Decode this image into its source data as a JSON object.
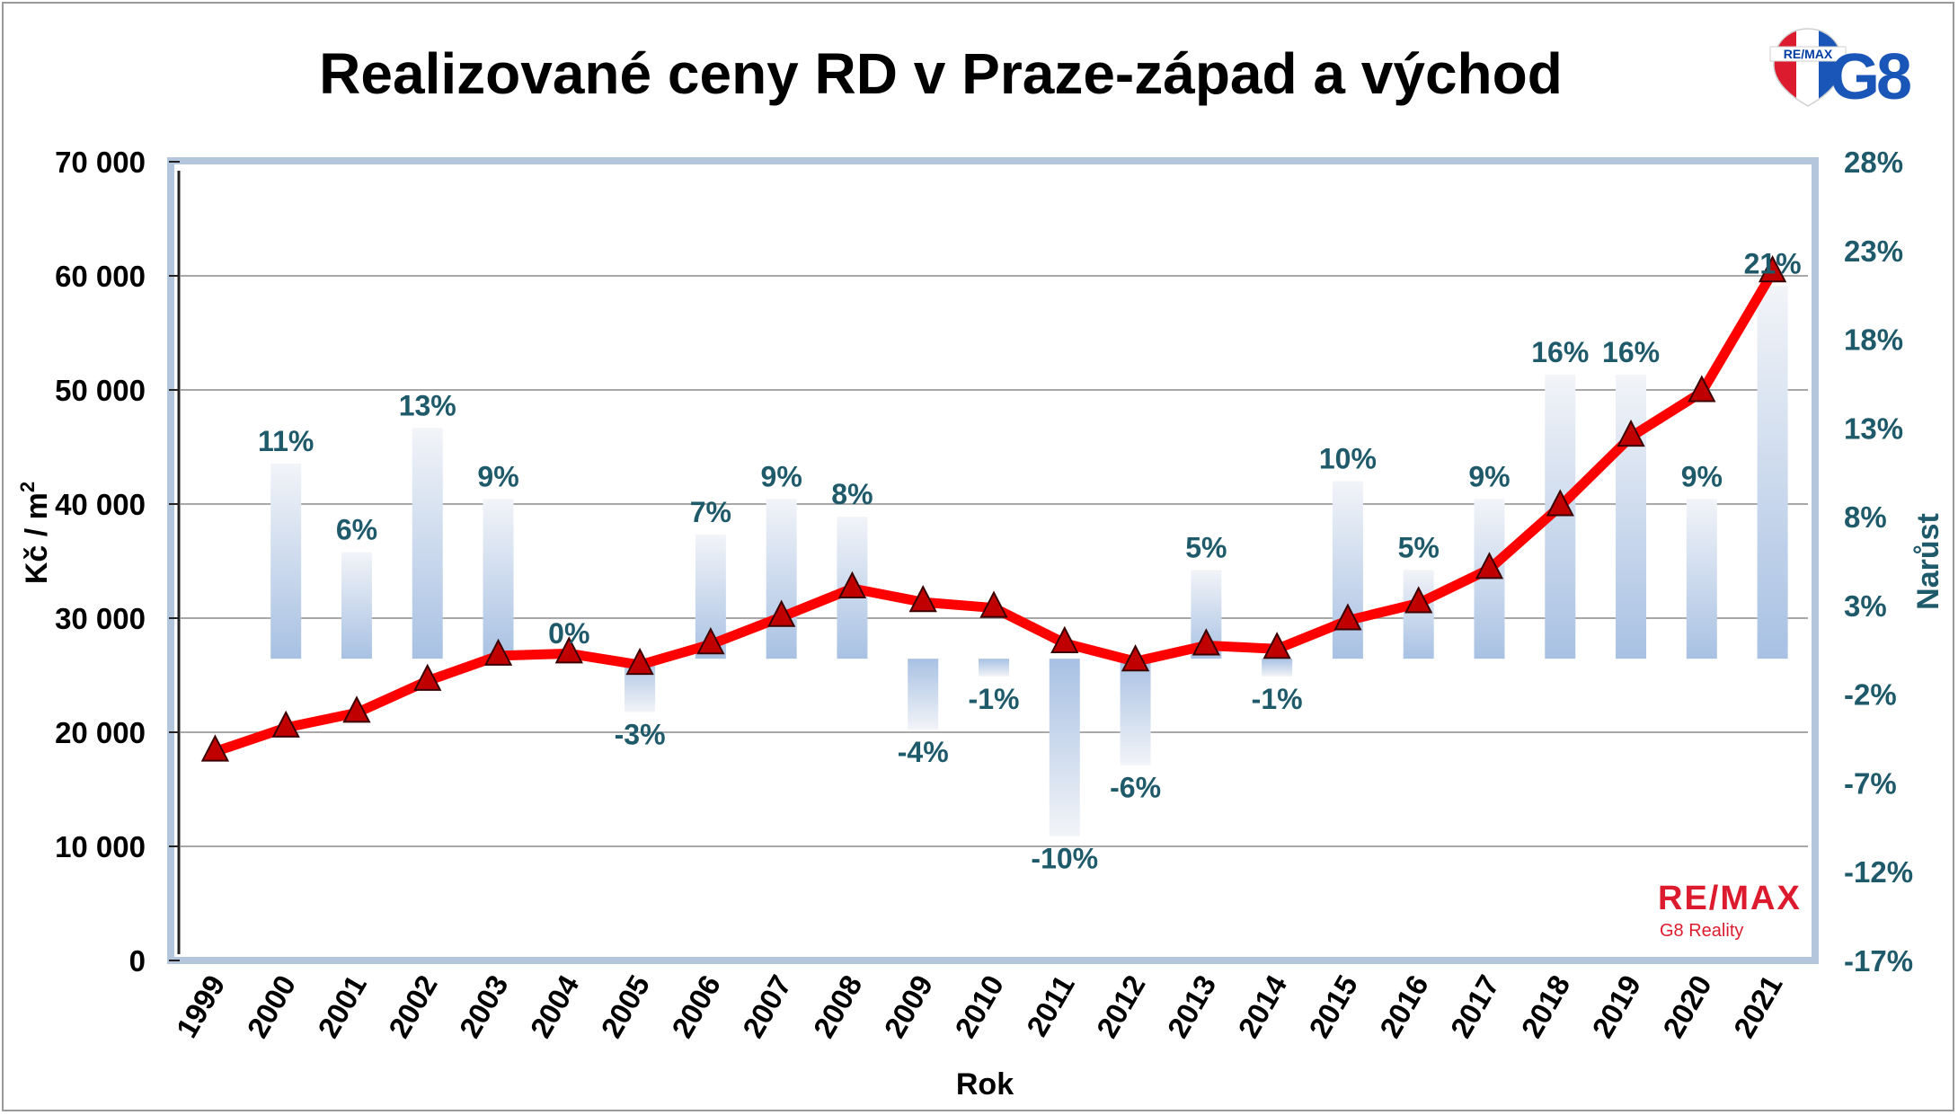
{
  "title": "Realizované ceny RD v Praze-západ a východ",
  "logo": {
    "top_badge": "RE/MAX",
    "top_mark": "G8",
    "bottom_brand": "RE/MAX",
    "bottom_sub": "G8 Reality",
    "colors": {
      "red": "#dc1c2e",
      "blue": "#1a56b8",
      "navy": "#003da5"
    }
  },
  "chart_data": {
    "type": "line",
    "title": "Realizované ceny RD v Praze-západ a východ",
    "xlabel": "Rok",
    "ylabel": "Kč / m",
    "ylabel_sup": "2",
    "y2label": "Narůst",
    "categories": [
      "1999",
      "2000",
      "2001",
      "2002",
      "2003",
      "2004",
      "2005",
      "2006",
      "2007",
      "2008",
      "2009",
      "2010",
      "2011",
      "2012",
      "2013",
      "2014",
      "2015",
      "2016",
      "2017",
      "2018",
      "2019",
      "2020",
      "2021"
    ],
    "ylim": [
      0,
      70000
    ],
    "y_ticks": [
      "0",
      "10 000",
      "20 000",
      "30 000",
      "40 000",
      "50 000",
      "60 000",
      "70 000"
    ],
    "y2lim": [
      -0.17,
      0.28
    ],
    "y2_ticks": [
      "-17%",
      "-12%",
      "-7%",
      "-2%",
      "3%",
      "8%",
      "13%",
      "18%",
      "23%",
      "28%"
    ],
    "grid": true,
    "series": [
      {
        "kind": "line",
        "color": "#ff0000",
        "marker_color": "#c00000",
        "values": [
          18300,
          20400,
          21700,
          24500,
          26700,
          26900,
          25900,
          27700,
          30100,
          32600,
          31400,
          30900,
          27800,
          26200,
          27600,
          27300,
          29800,
          31300,
          34300,
          39800,
          45900,
          49800,
          60300
        ]
      },
      {
        "kind": "bar",
        "axis": "right",
        "values": [
          null,
          11,
          6,
          13,
          9,
          0,
          -3,
          7,
          9,
          8,
          -4,
          -1,
          -10,
          -6,
          5,
          -1,
          10,
          5,
          9,
          16,
          16,
          9,
          21
        ],
        "labels": [
          "",
          "11%",
          "6%",
          "13%",
          "9%",
          "0%",
          "-3%",
          "7%",
          "9%",
          "8%",
          "-4%",
          "-1%",
          "-10%",
          "-6%",
          "5%",
          "-1%",
          "10%",
          "5%",
          "9%",
          "16%",
          "16%",
          "9%",
          "21%"
        ]
      }
    ]
  }
}
